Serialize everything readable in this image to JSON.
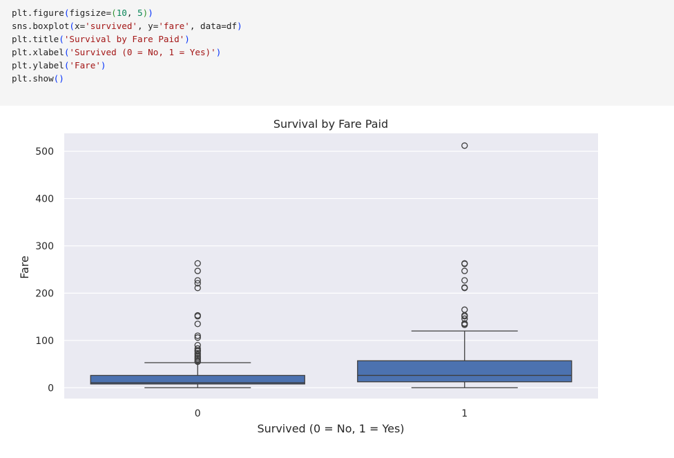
{
  "code_cell": {
    "lines": [
      [
        {
          "t": "plt.figure"
        },
        {
          "t": "(",
          "c": "p1"
        },
        {
          "t": "figsize="
        },
        {
          "t": "(",
          "c": "p2"
        },
        {
          "t": "10",
          "c": "num"
        },
        {
          "t": ", "
        },
        {
          "t": "5",
          "c": "num"
        },
        {
          "t": ")",
          "c": "p2"
        },
        {
          "t": ")",
          "c": "p1"
        }
      ],
      [
        {
          "t": "sns.boxplot"
        },
        {
          "t": "(",
          "c": "p1"
        },
        {
          "t": "x="
        },
        {
          "t": "'survived'",
          "c": "str"
        },
        {
          "t": ", y="
        },
        {
          "t": "'fare'",
          "c": "str"
        },
        {
          "t": ", data=df"
        },
        {
          "t": ")",
          "c": "p1"
        }
      ],
      [
        {
          "t": "plt.title"
        },
        {
          "t": "(",
          "c": "p1"
        },
        {
          "t": "'Survival by Fare Paid'",
          "c": "str"
        },
        {
          "t": ")",
          "c": "p1"
        }
      ],
      [
        {
          "t": "plt.xlabel"
        },
        {
          "t": "(",
          "c": "p1"
        },
        {
          "t": "'Survived (0 = No, 1 = Yes)'",
          "c": "str"
        },
        {
          "t": ")",
          "c": "p1"
        }
      ],
      [
        {
          "t": "plt.ylabel"
        },
        {
          "t": "(",
          "c": "p1"
        },
        {
          "t": "'Fare'",
          "c": "str"
        },
        {
          "t": ")",
          "c": "p1"
        }
      ],
      [
        {
          "t": "plt.show"
        },
        {
          "t": "()",
          "c": "p1"
        }
      ]
    ]
  },
  "colors": {
    "str": "#a31515",
    "num": "#098658",
    "p1": "#0431fa",
    "p2": "#319331",
    "plot_bg": "#eaeaf2",
    "box": "#4c72b0",
    "line": "#3d3d3d"
  },
  "chart_data": {
    "type": "box",
    "title": "Survival by Fare Paid",
    "xlabel": "Survived (0 = No, 1 = Yes)",
    "ylabel": "Fare",
    "categories": [
      "0",
      "1"
    ],
    "ylim": [
      -23,
      538
    ],
    "yticks": [
      0,
      100,
      200,
      300,
      400,
      500
    ],
    "grid": true,
    "boxes": [
      {
        "category": "0",
        "whisker_low": 0,
        "q1": 7.9,
        "median": 10.5,
        "q3": 26,
        "whisker_high": 53,
        "outliers": [
          55,
          57,
          60,
          63,
          66,
          70,
          73,
          77,
          79,
          83,
          90,
          106,
          110,
          135,
          151,
          153,
          211,
          221,
          227,
          247,
          263
        ]
      },
      {
        "category": "1",
        "whisker_low": 0,
        "q1": 12.5,
        "median": 26,
        "q3": 57,
        "whisker_high": 120,
        "outliers": [
          133,
          135,
          136,
          146,
          151,
          153,
          165,
          211,
          212,
          227,
          247,
          262,
          263,
          512
        ]
      }
    ]
  }
}
